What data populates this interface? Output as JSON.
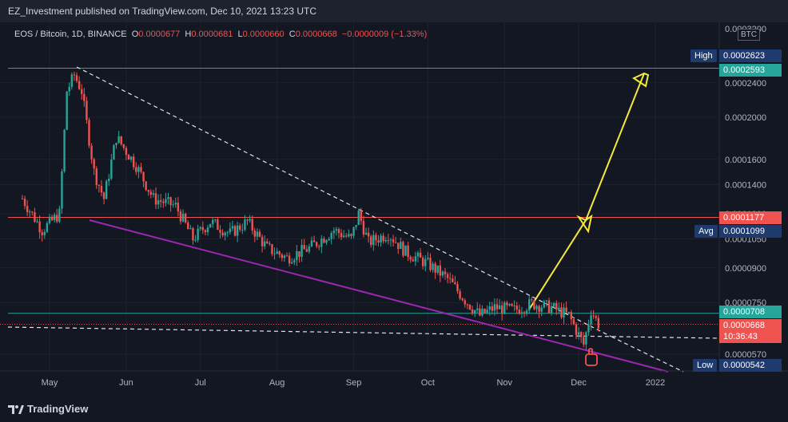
{
  "header": {
    "publisher": "EZ_Investment published on TradingView.com, Dec 10, 2021 13:23 UTC"
  },
  "legend": {
    "symbol": "EOS / Bitcoin, 1D, BINANCE",
    "o_label": "O",
    "o_value": "0.0000677",
    "h_label": "H",
    "h_value": "0.0000681",
    "l_label": "L",
    "l_value": "0.0000660",
    "c_label": "C",
    "c_value": "0.0000668",
    "change": "−0.0000009 (−1.33%)"
  },
  "axis": {
    "currency": "BTC",
    "top_tick": "0.0003200",
    "high_label": "High",
    "avg_label": "Avg",
    "low_label": "Low",
    "countdown": "10:36:43"
  },
  "price_tags": {
    "high": "0.0002623",
    "level_top": "0.0002593",
    "level_red": "0.0001177",
    "avg": "0.0001099",
    "level_green": "0.0000708",
    "last": "0.0000668",
    "low": "0.0000542"
  },
  "colors": {
    "background": "#131722",
    "up": "#26a69a",
    "down": "#ef5350",
    "trendline": "#9c27b0",
    "arrow": "#f5ea3c",
    "level_red": "#ef5350",
    "level_teal": "#26a69a"
  },
  "footer": {
    "brand": "TradingView",
    "logo_icon": "tradingview-logo-icon"
  },
  "chart_data": {
    "type": "candlestick",
    "title": "EOS / Bitcoin, 1D, BINANCE",
    "y_scale": "log",
    "y_ticks": [
      "0.0002400",
      "0.0002000",
      "0.0001600",
      "0.0001400",
      "0.0001200",
      "0.0001050",
      "0.0000900",
      "0.0000750",
      "0.0000570"
    ],
    "x_ticks": [
      "May",
      "Jun",
      "Jul",
      "Aug",
      "Sep",
      "Oct",
      "Nov",
      "Dec",
      "2022"
    ],
    "ylim": [
      5e-05,
      0.00033
    ],
    "close_path_approx": [
      {
        "date": "2021-04-20",
        "close": 0.00013
      },
      {
        "date": "2021-04-28",
        "close": 0.00011
      },
      {
        "date": "2021-05-05",
        "close": 0.00012
      },
      {
        "date": "2021-05-08",
        "close": 0.00023
      },
      {
        "date": "2021-05-11",
        "close": 0.00025
      },
      {
        "date": "2021-05-14",
        "close": 0.00023
      },
      {
        "date": "2021-05-19",
        "close": 0.00015
      },
      {
        "date": "2021-05-23",
        "close": 0.00013
      },
      {
        "date": "2021-05-28",
        "close": 0.00018
      },
      {
        "date": "2021-06-05",
        "close": 0.000155
      },
      {
        "date": "2021-06-12",
        "close": 0.00013
      },
      {
        "date": "2021-06-21",
        "close": 0.000125
      },
      {
        "date": "2021-06-28",
        "close": 0.000105
      },
      {
        "date": "2021-07-05",
        "close": 0.000115
      },
      {
        "date": "2021-07-13",
        "close": 0.000108
      },
      {
        "date": "2021-07-20",
        "close": 0.000115
      },
      {
        "date": "2021-07-28",
        "close": 0.0001
      },
      {
        "date": "2021-08-05",
        "close": 9.5e-05
      },
      {
        "date": "2021-08-14",
        "close": 0.0001
      },
      {
        "date": "2021-08-24",
        "close": 0.00011
      },
      {
        "date": "2021-08-31",
        "close": 0.000105
      },
      {
        "date": "2021-09-03",
        "close": 0.00012
      },
      {
        "date": "2021-09-07",
        "close": 0.000103
      },
      {
        "date": "2021-09-15",
        "close": 0.000108
      },
      {
        "date": "2021-09-22",
        "close": 9.8e-05
      },
      {
        "date": "2021-10-01",
        "close": 9.2e-05
      },
      {
        "date": "2021-10-09",
        "close": 8.5e-05
      },
      {
        "date": "2021-10-16",
        "close": 7.6e-05
      },
      {
        "date": "2021-10-22",
        "close": 7e-05
      },
      {
        "date": "2021-10-28",
        "close": 7.3e-05
      },
      {
        "date": "2021-11-05",
        "close": 7.2e-05
      },
      {
        "date": "2021-11-12",
        "close": 7.45e-05
      },
      {
        "date": "2021-11-20",
        "close": 7.3e-05
      },
      {
        "date": "2021-11-27",
        "close": 7e-05
      },
      {
        "date": "2021-12-03",
        "close": 6e-05
      },
      {
        "date": "2021-12-06",
        "close": 7.2e-05
      },
      {
        "date": "2021-12-09",
        "close": 6.68e-05
      }
    ],
    "horizontal_levels": [
      {
        "price": 0.0002593,
        "color": "#26a69a"
      },
      {
        "price": 0.0001177,
        "color": "#ef5350"
      },
      {
        "price": 7.08e-05,
        "color": "#26a69a"
      }
    ]
  }
}
